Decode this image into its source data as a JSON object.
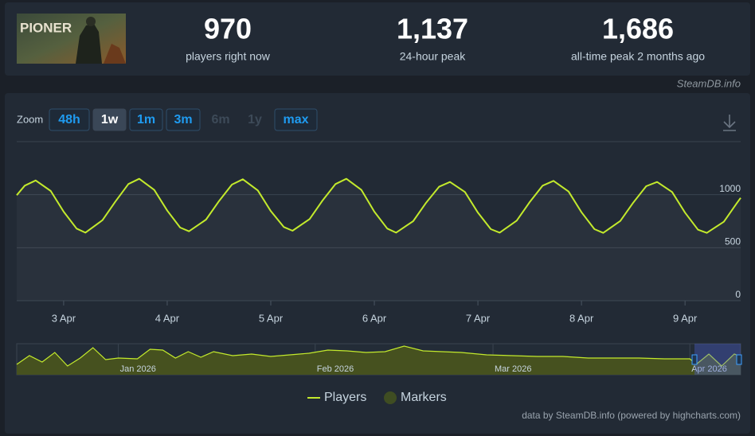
{
  "header": {
    "image_text": "PIONER",
    "stats": [
      {
        "value": "970",
        "label": "players right now"
      },
      {
        "value": "1,137",
        "label": "24-hour peak"
      },
      {
        "value": "1,686",
        "label": "all-time peak 2 months ago"
      }
    ],
    "site": "SteamDB.info"
  },
  "zoom": {
    "label": "Zoom",
    "buttons": [
      {
        "label": "48h",
        "state": "normal"
      },
      {
        "label": "1w",
        "state": "selected"
      },
      {
        "label": "1m",
        "state": "normal"
      },
      {
        "label": "3m",
        "state": "normal"
      },
      {
        "label": "6m",
        "state": "disabled"
      },
      {
        "label": "1y",
        "state": "disabled"
      },
      {
        "label": "max",
        "state": "normal"
      }
    ]
  },
  "chart_data": [
    {
      "type": "line",
      "x": [
        2.547,
        2.625,
        2.73,
        2.875,
        3,
        3.125,
        3.21,
        3.375,
        3.5,
        3.625,
        3.73,
        3.875,
        4,
        4.125,
        4.21,
        4.375,
        4.5,
        4.625,
        4.73,
        4.875,
        5,
        5.125,
        5.21,
        5.375,
        5.5,
        5.625,
        5.73,
        5.875,
        6,
        6.125,
        6.21,
        6.375,
        6.5,
        6.625,
        6.73,
        6.875,
        7,
        7.125,
        7.21,
        7.375,
        7.5,
        7.625,
        7.73,
        7.875,
        8,
        8.125,
        8.21,
        8.375,
        8.5,
        8.625,
        8.73,
        8.875,
        9,
        9.125,
        9.21,
        9.375,
        9.5,
        9.537
      ],
      "series": [
        {
          "name": "Players",
          "color": "#c3ea2c",
          "values": [
            995,
            1085,
            1134,
            1035,
            840,
            680,
            642,
            760,
            935,
            1100,
            1150,
            1045,
            850,
            690,
            655,
            765,
            940,
            1095,
            1145,
            1040,
            845,
            695,
            660,
            770,
            945,
            1100,
            1150,
            1045,
            840,
            680,
            642,
            750,
            925,
            1075,
            1120,
            1025,
            830,
            675,
            642,
            755,
            930,
            1085,
            1130,
            1030,
            835,
            675,
            640,
            752,
            925,
            1080,
            1120,
            1025,
            830,
            670,
            640,
            745,
            920,
            970
          ]
        }
      ],
      "xlim": [
        2.547,
        9.537
      ],
      "xticks": [
        {
          "value": 3,
          "label": "3 Apr"
        },
        {
          "value": 4,
          "label": "4 Apr"
        },
        {
          "value": 5,
          "label": "5 Apr"
        },
        {
          "value": 6,
          "label": "6 Apr"
        },
        {
          "value": 7,
          "label": "7 Apr"
        },
        {
          "value": 8,
          "label": "8 Apr"
        },
        {
          "value": 9,
          "label": "9 Apr"
        }
      ],
      "ylim": [
        0,
        1500
      ],
      "yticks": [
        0,
        500,
        1000
      ],
      "grid": true,
      "markers": {
        "name": "Markers",
        "color": "#3f4d22"
      }
    },
    {
      "type": "area",
      "x": [
        0,
        2,
        4,
        6,
        8,
        10,
        12,
        14,
        16,
        19,
        21,
        23,
        25,
        27,
        29,
        31,
        34,
        37,
        40,
        43,
        46,
        49,
        52,
        55,
        58,
        61,
        64,
        67,
        70,
        74,
        78,
        82,
        86,
        90,
        94,
        98,
        102,
        106,
        107,
        109,
        111,
        113,
        114
      ],
      "values": [
        600,
        1108,
        738,
        1292,
        508,
        970,
        1570,
        877,
        970,
        923,
        1477,
        1430,
        970,
        1338,
        1015,
        1338,
        1108,
        1200,
        1062,
        1154,
        1246,
        1430,
        1385,
        1292,
        1338,
        1662,
        1385,
        1338,
        1292,
        1154,
        1108,
        1062,
        1062,
        970,
        970,
        970,
        923,
        923,
        600,
        1200,
        508,
        1200,
        1062
      ],
      "color": "#c3ea2c",
      "xlim": [
        0,
        114
      ],
      "xticks": [
        {
          "value": 16,
          "label": "Jan 2026"
        },
        {
          "value": 47,
          "label": "Feb 2026"
        },
        {
          "value": 75,
          "label": "Mar 2026"
        },
        {
          "value": 106,
          "label": "Apr 2026"
        }
      ],
      "ylim": [
        0,
        1800
      ]
    }
  ],
  "credit": "data by SteamDB.info (powered by highcharts.com)"
}
